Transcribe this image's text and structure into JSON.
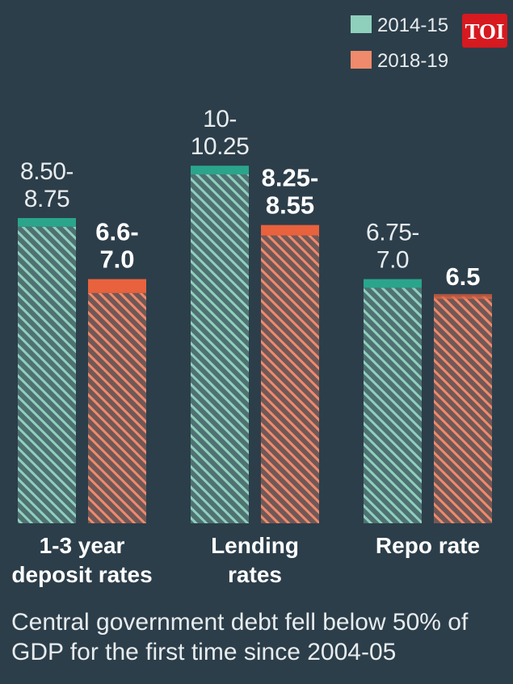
{
  "logo": "TOI",
  "colors": {
    "background": "#2c3e4a",
    "series_2014": "#8fd0bd",
    "series_2014_cap": "#2aa58c",
    "series_2018": "#ef8a6c",
    "series_2018_cap": "#e8623e",
    "logo_bg": "#d71920"
  },
  "chart_data": {
    "type": "bar",
    "categories": [
      "1-3 year deposit rates",
      "Lending rates",
      "Repo rate"
    ],
    "category_lines": [
      [
        "1-3 year",
        "deposit rates"
      ],
      [
        "Lending",
        "rates"
      ],
      [
        "Repo rate"
      ]
    ],
    "series": [
      {
        "name": "2014-15",
        "low": [
          8.5,
          10.0,
          6.75
        ],
        "high": [
          8.75,
          10.25,
          7.0
        ],
        "labels": [
          [
            "8.50-",
            "8.75"
          ],
          [
            "10-",
            "10.25"
          ],
          [
            "6.75-",
            "7.0"
          ]
        ]
      },
      {
        "name": "2018-19",
        "low": [
          6.6,
          8.25,
          6.5
        ],
        "high": [
          7.0,
          8.55,
          6.5
        ],
        "labels": [
          [
            "6.6-",
            "7.0"
          ],
          [
            "8.25-",
            "8.55"
          ],
          [
            "6.5"
          ]
        ]
      }
    ],
    "legend_position": "top-right",
    "grid": false
  },
  "footnote": "Central government debt fell below 50% of GDP for the first time since 2004-05"
}
